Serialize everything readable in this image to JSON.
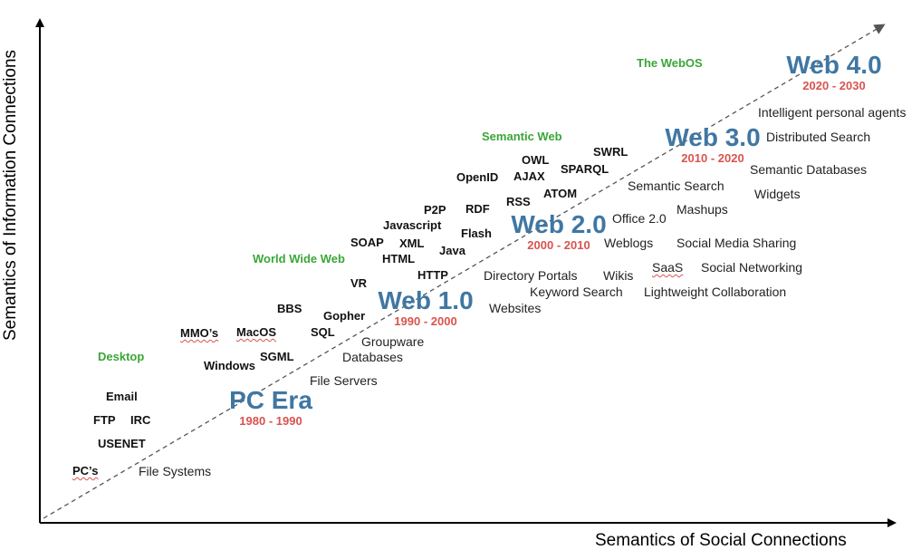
{
  "axes": {
    "x_label": "Semantics of Social Connections",
    "y_label": "Semantics of Information Connections"
  },
  "colors": {
    "era_name": "#3f77a3",
    "era_years": "#d9534f",
    "phase": "#3aa637",
    "text": "#111111"
  },
  "eras": [
    {
      "id": "pc-era",
      "name": "PC Era",
      "years": "1980 - 1990"
    },
    {
      "id": "web-1",
      "name": "Web 1.0",
      "years": "1990 - 2000"
    },
    {
      "id": "web-2",
      "name": "Web 2.0",
      "years": "2000 - 2010"
    },
    {
      "id": "web-3",
      "name": "Web 3.0",
      "years": "2010 - 2020"
    },
    {
      "id": "web-4",
      "name": "Web 4.0",
      "years": "2020 - 2030"
    }
  ],
  "phases": [
    "Desktop",
    "World Wide Web",
    "Semantic Web",
    "The WebOS"
  ],
  "technologies": [
    "PC’s",
    "USENET",
    "FTP",
    "IRC",
    "Email",
    "Windows",
    "MMO’s",
    "MacOS",
    "SGML",
    "SQL",
    "BBS",
    "Gopher",
    "VR",
    "SOAP",
    "XML",
    "HTML",
    "HTTP",
    "Javascript",
    "P2P",
    "Java",
    "RDF",
    "Flash",
    "OpenID",
    "AJAX",
    "RSS",
    "OWL",
    "ATOM",
    "SPARQL",
    "SWRL"
  ],
  "applications": [
    "File Systems",
    "File Servers",
    "Databases",
    "Groupware",
    "Websites",
    "Directory Portals",
    "Keyword Search",
    "Wikis",
    "Weblogs",
    "Office 2.0",
    "Semantic Search",
    "SaaS",
    "Social Networking",
    "Lightweight Collaboration",
    "Social Media Sharing",
    "Mashups",
    "Widgets",
    "Semantic Databases",
    "Distributed Search",
    "Intelligent personal agents"
  ]
}
